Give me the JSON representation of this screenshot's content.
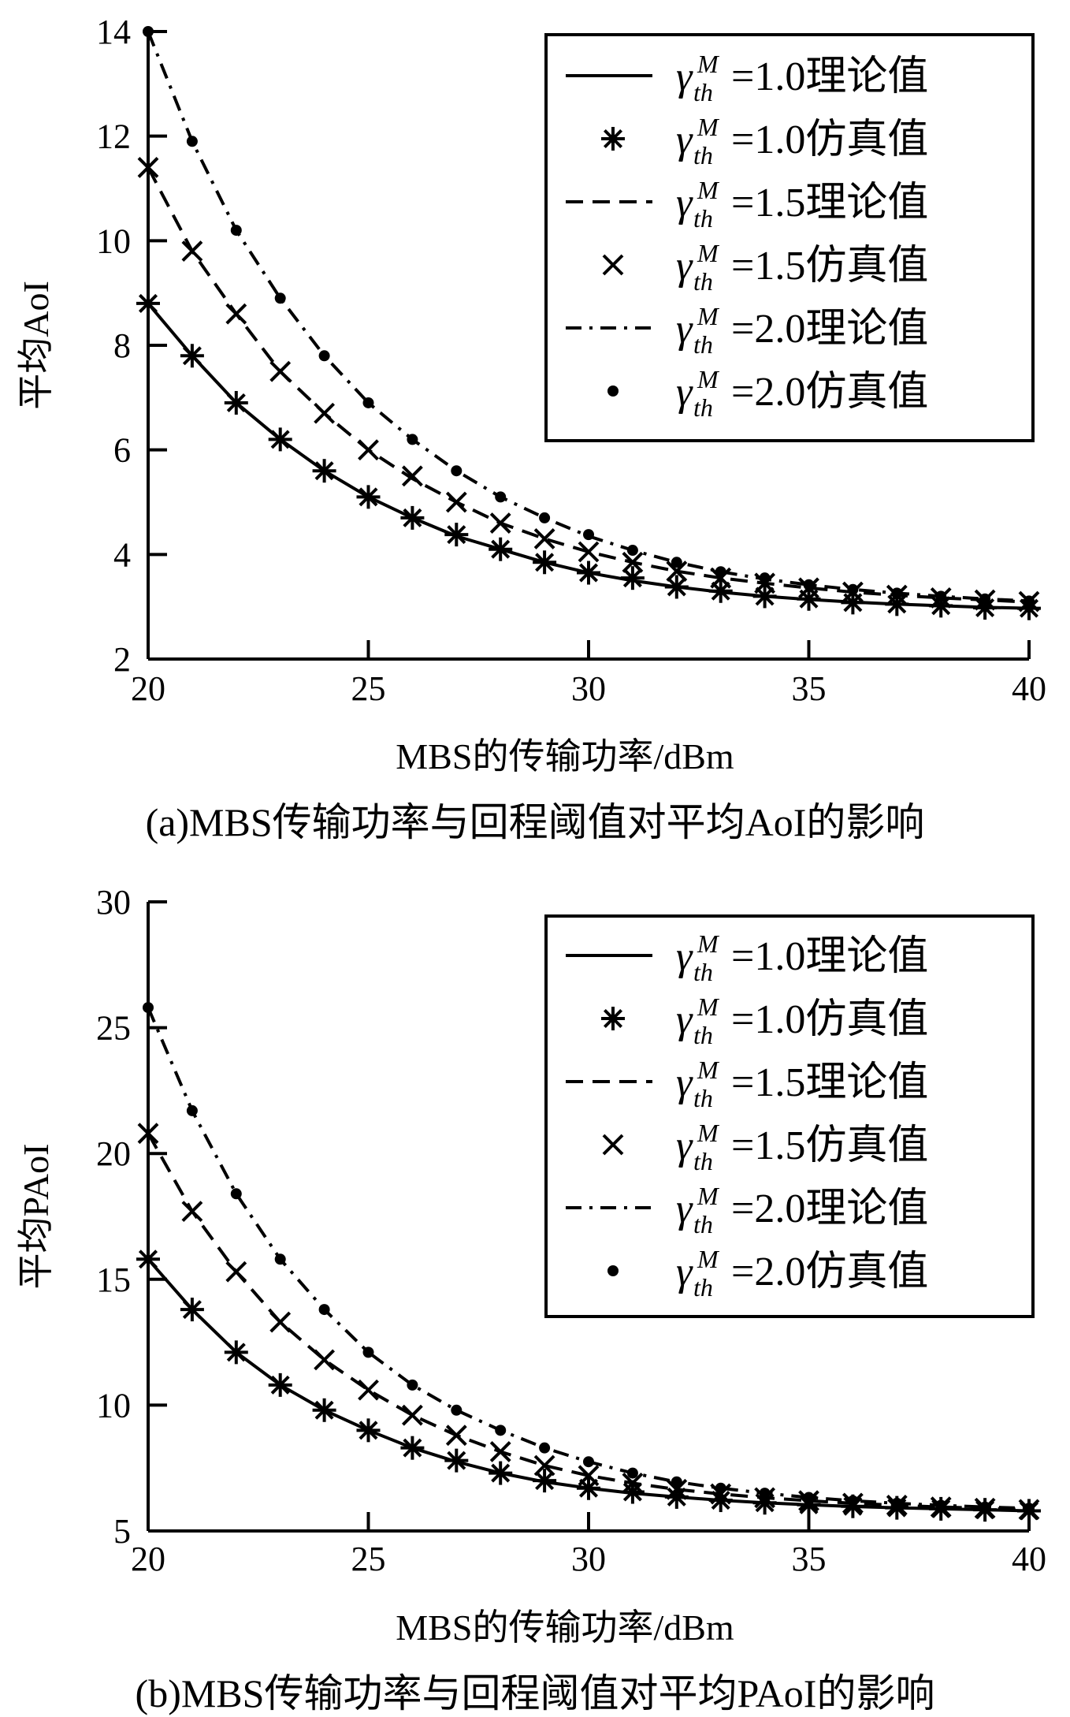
{
  "chart_data": [
    {
      "type": "line",
      "caption": "(a)MBS传输功率与回程阈值对平均AoI的影响",
      "xlabel": "MBS的传输功率/dBm",
      "ylabel": "平均AoI",
      "xlim": [
        20,
        40
      ],
      "ylim": [
        2,
        14
      ],
      "xticks": [
        20,
        25,
        30,
        35,
        40
      ],
      "yticks": [
        2,
        4,
        6,
        8,
        10,
        12,
        14
      ],
      "grid": false,
      "legend_position": "top-right",
      "x": [
        20,
        21,
        22,
        23,
        24,
        25,
        26,
        27,
        28,
        29,
        30,
        31,
        32,
        33,
        34,
        35,
        36,
        37,
        38,
        39,
        40
      ],
      "series": [
        {
          "name": "=1.0理论值",
          "sub": "th",
          "sup": "M",
          "style": "solid",
          "marker": "none",
          "values": [
            8.8,
            7.8,
            6.9,
            6.2,
            5.6,
            5.1,
            4.7,
            4.35,
            4.1,
            3.85,
            3.65,
            3.5,
            3.38,
            3.28,
            3.2,
            3.14,
            3.09,
            3.05,
            3.02,
            2.99,
            2.97
          ]
        },
        {
          "name": "=1.0仿真值",
          "sub": "th",
          "sup": "M",
          "style": "none",
          "marker": "asterisk",
          "values": [
            8.8,
            7.8,
            6.9,
            6.2,
            5.6,
            5.1,
            4.7,
            4.38,
            4.1,
            3.85,
            3.65,
            3.55,
            3.38,
            3.3,
            3.2,
            3.15,
            3.08,
            3.05,
            3.02,
            2.98,
            2.97
          ]
        },
        {
          "name": "=1.5理论值",
          "sub": "th",
          "sup": "M",
          "style": "dashed",
          "marker": "none",
          "values": [
            11.4,
            9.8,
            8.6,
            7.5,
            6.7,
            6.0,
            5.45,
            5.0,
            4.6,
            4.3,
            4.05,
            3.85,
            3.68,
            3.55,
            3.45,
            3.36,
            3.28,
            3.22,
            3.17,
            3.13,
            3.09
          ]
        },
        {
          "name": "=1.5仿真值",
          "sub": "th",
          "sup": "M",
          "style": "none",
          "marker": "cross",
          "values": [
            11.4,
            9.8,
            8.6,
            7.5,
            6.7,
            6.0,
            5.5,
            5.0,
            4.6,
            4.3,
            4.05,
            3.85,
            3.68,
            3.55,
            3.45,
            3.36,
            3.28,
            3.22,
            3.17,
            3.13,
            3.1
          ]
        },
        {
          "name": "=2.0理论值",
          "sub": "th",
          "sup": "M",
          "style": "dashdot",
          "marker": "none",
          "values": [
            14.0,
            11.9,
            10.2,
            8.9,
            7.8,
            6.9,
            6.2,
            5.6,
            5.1,
            4.7,
            4.35,
            4.08,
            3.85,
            3.67,
            3.53,
            3.42,
            3.33,
            3.26,
            3.2,
            3.15,
            3.11
          ]
        },
        {
          "name": "=2.0仿真值",
          "sub": "th",
          "sup": "M",
          "style": "none",
          "marker": "dot",
          "values": [
            14.0,
            11.9,
            10.2,
            8.9,
            7.8,
            6.9,
            6.2,
            5.6,
            5.1,
            4.7,
            4.38,
            4.08,
            3.85,
            3.67,
            3.55,
            3.42,
            3.33,
            3.26,
            3.2,
            3.15,
            3.11
          ]
        }
      ]
    },
    {
      "type": "line",
      "caption": "(b)MBS传输功率与回程阈值对平均PAoI的影响",
      "xlabel": "MBS的传输功率/dBm",
      "ylabel": "平均PAoI",
      "xlim": [
        20,
        40
      ],
      "ylim": [
        5,
        30
      ],
      "xticks": [
        20,
        25,
        30,
        35,
        40
      ],
      "yticks": [
        5,
        10,
        15,
        20,
        25,
        30
      ],
      "grid": false,
      "legend_position": "top-right",
      "x": [
        20,
        21,
        22,
        23,
        24,
        25,
        26,
        27,
        28,
        29,
        30,
        31,
        32,
        33,
        34,
        35,
        36,
        37,
        38,
        39,
        40
      ],
      "series": [
        {
          "name": "=1.0理论值",
          "sub": "th",
          "sup": "M",
          "style": "solid",
          "marker": "none",
          "values": [
            15.8,
            13.8,
            12.1,
            10.8,
            9.8,
            9.0,
            8.3,
            7.75,
            7.3,
            6.95,
            6.7,
            6.5,
            6.35,
            6.22,
            6.12,
            6.04,
            5.97,
            5.92,
            5.88,
            5.84,
            5.8
          ]
        },
        {
          "name": "=1.0仿真值",
          "sub": "th",
          "sup": "M",
          "style": "none",
          "marker": "asterisk",
          "values": [
            15.8,
            13.8,
            12.1,
            10.8,
            9.8,
            9.0,
            8.3,
            7.8,
            7.3,
            7.0,
            6.7,
            6.55,
            6.35,
            6.22,
            6.12,
            6.04,
            5.98,
            5.92,
            5.88,
            5.84,
            5.8
          ]
        },
        {
          "name": "=1.5理论值",
          "sub": "th",
          "sup": "M",
          "style": "dashed",
          "marker": "none",
          "values": [
            20.8,
            17.7,
            15.3,
            13.3,
            11.8,
            10.6,
            9.6,
            8.8,
            8.15,
            7.6,
            7.2,
            6.9,
            6.65,
            6.47,
            6.32,
            6.2,
            6.1,
            6.02,
            5.95,
            5.9,
            5.85
          ]
        },
        {
          "name": "=1.5仿真值",
          "sub": "th",
          "sup": "M",
          "style": "none",
          "marker": "cross",
          "values": [
            20.8,
            17.7,
            15.3,
            13.3,
            11.8,
            10.6,
            9.6,
            8.8,
            8.15,
            7.6,
            7.2,
            6.9,
            6.65,
            6.47,
            6.32,
            6.2,
            6.1,
            6.02,
            5.95,
            5.9,
            5.85
          ]
        },
        {
          "name": "=2.0理论值",
          "sub": "th",
          "sup": "M",
          "style": "dashdot",
          "marker": "none",
          "values": [
            25.8,
            21.7,
            18.4,
            15.8,
            13.8,
            12.1,
            10.8,
            9.8,
            9.0,
            8.3,
            7.75,
            7.3,
            6.95,
            6.7,
            6.5,
            6.33,
            6.2,
            6.1,
            6.02,
            5.95,
            5.9
          ]
        },
        {
          "name": "=2.0仿真值",
          "sub": "th",
          "sup": "M",
          "style": "none",
          "marker": "dot",
          "values": [
            25.8,
            21.7,
            18.4,
            15.8,
            13.8,
            12.1,
            10.8,
            9.8,
            9.0,
            8.3,
            7.75,
            7.3,
            6.95,
            6.7,
            6.5,
            6.33,
            6.2,
            6.1,
            6.02,
            5.95,
            5.9
          ]
        }
      ]
    }
  ],
  "legend_symbol": "γ",
  "colors": {
    "ink": "#000000",
    "background": "#ffffff"
  }
}
